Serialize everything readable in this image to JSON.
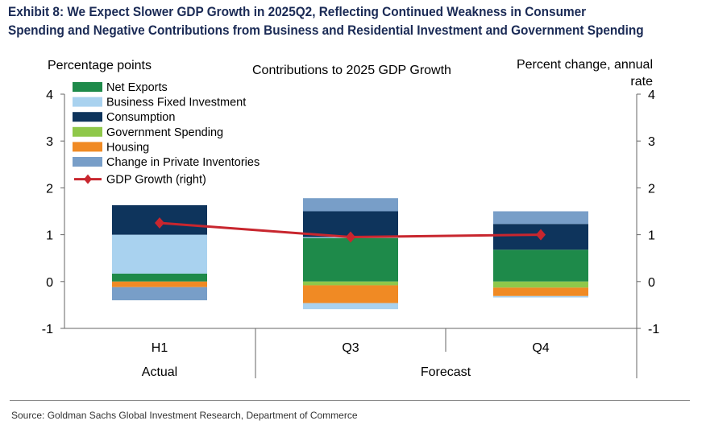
{
  "title_lines": [
    "Exhibit 8: We Expect Slower GDP Growth in 2025Q2, Reflecting Continued Weakness in Consumer",
    "Spending and Negative Contributions from Business and Residential Investment and Government Spending"
  ],
  "source": "Source: Goldman Sachs Global Investment Research, Department of Commerce",
  "colors": {
    "net_exports": "#1e8a4a",
    "business_fixed_investment": "#a9d2ef",
    "consumption": "#0e345c",
    "government_spending": "#8fc84a",
    "housing": "#f08a24",
    "change_in_private_inventories": "#789ec8",
    "gdp_growth": "#c8262e"
  },
  "chart_data": {
    "type": "bar",
    "stacked": true,
    "title": "Contributions to 2025 GDP Growth",
    "ylabel_left": "Percentage points",
    "ylabel_right": "Percent change, annual rate",
    "ylim": [
      -1,
      4
    ],
    "yticks": [
      "4",
      "3",
      "2",
      "1",
      "0",
      "-1"
    ],
    "y_right_ticks": [
      "4",
      "3",
      "2",
      "1",
      "0",
      "-1"
    ],
    "categories": [
      "H1",
      "Q3",
      "Q4"
    ],
    "groups": [
      {
        "label": "Actual",
        "categories": [
          "H1"
        ]
      },
      {
        "label": "Forecast",
        "categories": [
          "Q3",
          "Q4"
        ]
      }
    ],
    "series": [
      {
        "name": "Net Exports",
        "key": "net_exports",
        "values": [
          0.17,
          0.93,
          0.68
        ]
      },
      {
        "name": "Business Fixed Investment",
        "key": "business_fixed_investment",
        "values": [
          0.83,
          0.02,
          0.0
        ]
      },
      {
        "name": "Consumption",
        "key": "consumption",
        "values": [
          0.63,
          0.55,
          0.55
        ]
      },
      {
        "name": "Government Spending",
        "key": "government_spending",
        "values": [
          0.0,
          -0.08,
          -0.13
        ]
      },
      {
        "name": "Housing",
        "key": "housing",
        "values": [
          -0.12,
          -0.38,
          -0.18
        ]
      },
      {
        "name": "Change in Private Inventories",
        "key": "change_in_private_inventories",
        "values": [
          -0.28,
          0.28,
          0.27
        ]
      },
      {
        "name": "Business Fixed Investment (negative)",
        "key": "business_fixed_investment",
        "values": [
          0.0,
          -0.13,
          -0.03
        ],
        "legend": false
      }
    ],
    "line": {
      "name": "GDP Growth (right)",
      "key": "gdp_growth",
      "values": [
        1.25,
        0.95,
        1.0
      ]
    }
  }
}
